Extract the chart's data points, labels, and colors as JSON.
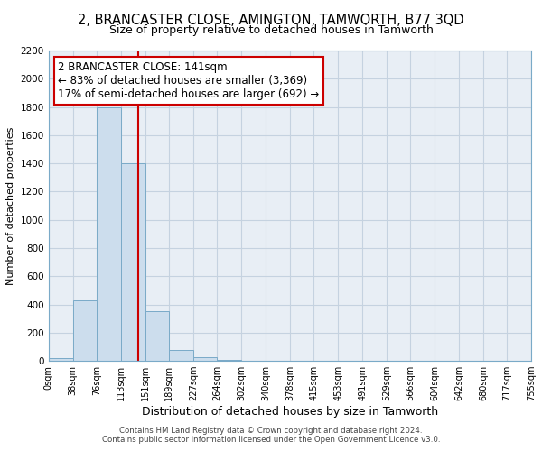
{
  "title": "2, BRANCASTER CLOSE, AMINGTON, TAMWORTH, B77 3QD",
  "subtitle": "Size of property relative to detached houses in Tamworth",
  "xlabel": "Distribution of detached houses by size in Tamworth",
  "ylabel": "Number of detached properties",
  "bar_edges": [
    0,
    38,
    76,
    113,
    151,
    189,
    227,
    264,
    302,
    340,
    378,
    415,
    453,
    491,
    529,
    566,
    604,
    642,
    680,
    717,
    755
  ],
  "bar_heights": [
    20,
    430,
    1800,
    1400,
    350,
    75,
    25,
    5,
    0,
    0,
    0,
    0,
    0,
    0,
    0,
    0,
    0,
    0,
    0,
    0
  ],
  "bar_color": "#ccdded",
  "bar_edge_color": "#7aaac8",
  "property_line_x": 141,
  "property_line_color": "#cc0000",
  "annotation_box_edge_color": "#cc0000",
  "annotation_title": "2 BRANCASTER CLOSE: 141sqm",
  "annotation_line1": "← 83% of detached houses are smaller (3,369)",
  "annotation_line2": "17% of semi-detached houses are larger (692) →",
  "ylim": [
    0,
    2200
  ],
  "yticks": [
    0,
    200,
    400,
    600,
    800,
    1000,
    1200,
    1400,
    1600,
    1800,
    2000,
    2200
  ],
  "tick_labels": [
    "0sqm",
    "38sqm",
    "76sqm",
    "113sqm",
    "151sqm",
    "189sqm",
    "227sqm",
    "264sqm",
    "302sqm",
    "340sqm",
    "378sqm",
    "415sqm",
    "453sqm",
    "491sqm",
    "529sqm",
    "566sqm",
    "604sqm",
    "642sqm",
    "680sqm",
    "717sqm",
    "755sqm"
  ],
  "footer1": "Contains HM Land Registry data © Crown copyright and database right 2024.",
  "footer2": "Contains public sector information licensed under the Open Government Licence v3.0.",
  "grid_color": "#c5d2e0",
  "bg_color": "#ffffff",
  "plot_bg_color": "#e8eef5",
  "title_fontsize": 10.5,
  "subtitle_fontsize": 9,
  "annotation_fontsize": 8.5
}
